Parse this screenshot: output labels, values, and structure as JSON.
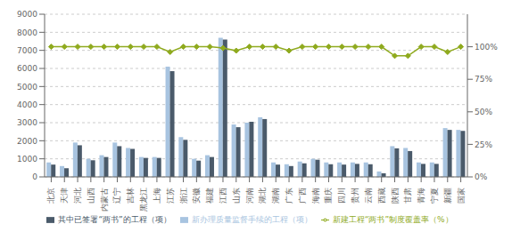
{
  "chart_data": {
    "type": "bar",
    "categories": [
      "北京",
      "天津",
      "河北",
      "山西",
      "内蒙古",
      "辽宁",
      "吉林",
      "黑龙江",
      "上海",
      "江苏",
      "浙江",
      "安徽",
      "福建",
      "江西",
      "山东",
      "河南",
      "湖北",
      "湖南",
      "广东",
      "广西",
      "海南",
      "重庆",
      "四川",
      "贵州",
      "云南",
      "西藏",
      "陕西",
      "甘肃",
      "青海",
      "宁夏",
      "新疆",
      "国家"
    ],
    "series": [
      {
        "name": "新办理质量监督手续的工程（项）",
        "type": "bar",
        "color": "#a8c4e0",
        "values": [
          800,
          600,
          1900,
          1000,
          1200,
          1900,
          1600,
          1100,
          1100,
          6100,
          2200,
          1000,
          1200,
          7700,
          2900,
          3000,
          3300,
          800,
          700,
          850,
          1000,
          800,
          800,
          800,
          800,
          300,
          1700,
          1600,
          800,
          800,
          2700,
          2600
        ]
      },
      {
        "name": "其中已签署“两书”的工程（项）",
        "type": "bar",
        "color": "#4a5a6a",
        "values": [
          680,
          480,
          1750,
          920,
          1100,
          1700,
          1550,
          1050,
          1050,
          5850,
          2050,
          900,
          1100,
          7600,
          2750,
          3050,
          3200,
          680,
          600,
          750,
          950,
          700,
          680,
          720,
          700,
          200,
          1580,
          1430,
          720,
          720,
          2600,
          2550
        ]
      },
      {
        "name": "新建工程“两书”制度覆盖率（%）",
        "type": "line",
        "axis": "y2",
        "marker": "diamond",
        "color": "#8faa1e",
        "values": [
          100,
          100,
          100,
          100,
          100,
          100,
          100,
          100,
          100,
          96,
          100,
          100,
          100,
          99,
          97,
          100,
          100,
          100,
          97,
          100,
          100,
          100,
          100,
          100,
          100,
          100,
          93,
          93,
          100,
          100,
          96,
          100
        ]
      }
    ],
    "ylim": [
      0,
      9000
    ],
    "yticks": [
      0,
      1000,
      2000,
      3000,
      4000,
      5000,
      6000,
      7000,
      8000,
      9000
    ],
    "y2lim": [
      0,
      125
    ],
    "y2ticks": [
      {
        "value": 0,
        "label": "0%"
      },
      {
        "value": 25,
        "label": "25%"
      },
      {
        "value": 50,
        "label": "50%"
      },
      {
        "value": 75,
        "label": "75%"
      },
      {
        "value": 100,
        "label": "100%"
      }
    ],
    "grid": true,
    "legend": "bottom"
  }
}
